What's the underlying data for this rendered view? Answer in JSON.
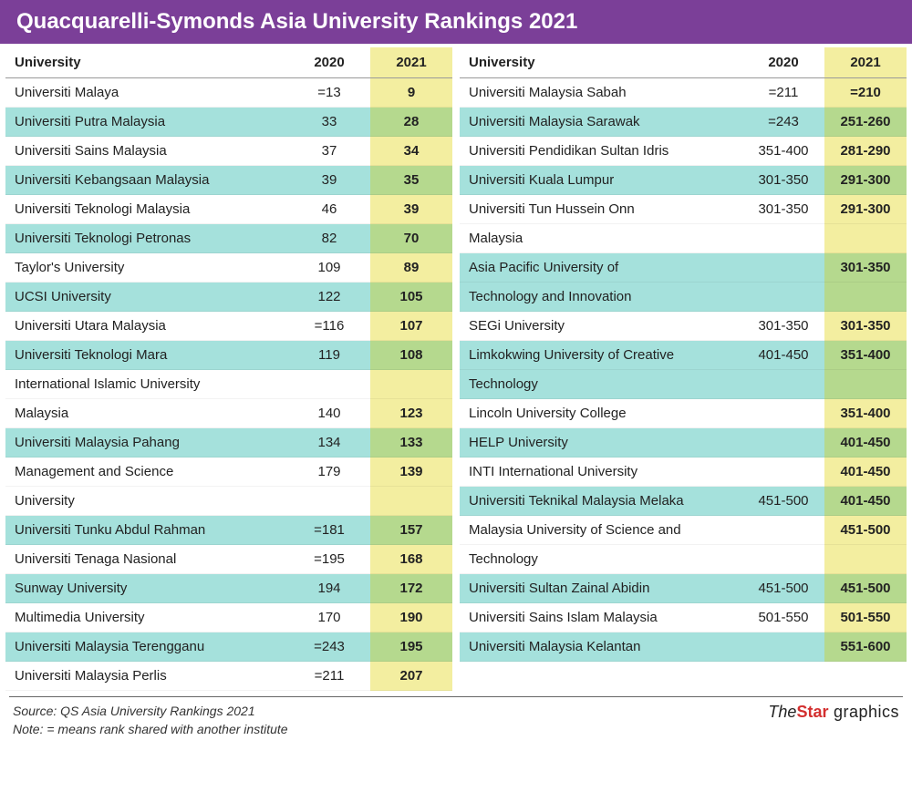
{
  "title": "Quacquarelli-Symonds Asia University Rankings 2021",
  "colors": {
    "header_bg": "#7b3f98",
    "header_text": "#ffffff",
    "stripe_teal": "#a5e1dc",
    "stripe_white": "#ffffff",
    "col2021_yellow": "#f3eea0",
    "col2021_green": "#b5d98e",
    "text": "#222222"
  },
  "columns": {
    "university": "University",
    "y2020": "2020",
    "y2021": "2021"
  },
  "left": [
    {
      "u": "Universiti Malaya",
      "a": "=13",
      "b": "9",
      "hl": "y"
    },
    {
      "u": "Universiti Putra Malaysia",
      "a": "33",
      "b": "28",
      "hl": "g"
    },
    {
      "u": "Universiti Sains Malaysia",
      "a": "37",
      "b": "34",
      "hl": "y"
    },
    {
      "u": "Universiti Kebangsaan Malaysia",
      "a": "39",
      "b": "35",
      "hl": "g"
    },
    {
      "u": "Universiti Teknologi Malaysia",
      "a": "46",
      "b": "39",
      "hl": "y"
    },
    {
      "u": "Universiti Teknologi Petronas",
      "a": "82",
      "b": "70",
      "hl": "g"
    },
    {
      "u": "Taylor's University",
      "a": "109",
      "b": "89",
      "hl": "y"
    },
    {
      "u": "UCSI University",
      "a": "122",
      "b": "105",
      "hl": "g"
    },
    {
      "u": "Universiti Utara Malaysia",
      "a": "=116",
      "b": "107",
      "hl": "y"
    },
    {
      "u": "Universiti Teknologi Mara",
      "a": "119",
      "b": "108",
      "hl": "g"
    },
    {
      "u": "International Islamic University",
      "a": "",
      "b": "",
      "hl": "y",
      "cont": true
    },
    {
      "u": "Malaysia",
      "a": "140",
      "b": "123",
      "hl": "y"
    },
    {
      "u": "Universiti Malaysia Pahang",
      "a": "134",
      "b": "133",
      "hl": "g"
    },
    {
      "u": "Management and Science",
      "a": "179",
      "b": "139",
      "hl": "y",
      "cont": true
    },
    {
      "u": "University",
      "a": "",
      "b": "",
      "hl": "y"
    },
    {
      "u": "Universiti Tunku Abdul Rahman",
      "a": "=181",
      "b": "157",
      "hl": "g"
    },
    {
      "u": "Universiti Tenaga Nasional",
      "a": "=195",
      "b": "168",
      "hl": "y"
    },
    {
      "u": "Sunway University",
      "a": "194",
      "b": "172",
      "hl": "g"
    },
    {
      "u": "Multimedia University",
      "a": "170",
      "b": "190",
      "hl": "y"
    },
    {
      "u": "Universiti Malaysia Terengganu",
      "a": "=243",
      "b": "195",
      "hl": "g"
    },
    {
      "u": "Universiti Malaysia Perlis",
      "a": "=211",
      "b": "207",
      "hl": "y"
    }
  ],
  "right": [
    {
      "u": "Universiti Malaysia Sabah",
      "a": "=211",
      "b": "=210",
      "hl": "y"
    },
    {
      "u": "Universiti Malaysia Sarawak",
      "a": "=243",
      "b": "251-260",
      "hl": "g"
    },
    {
      "u": "Universiti Pendidikan Sultan Idris",
      "a": "351-400",
      "b": "281-290",
      "hl": "y"
    },
    {
      "u": "Universiti Kuala Lumpur",
      "a": "301-350",
      "b": "291-300",
      "hl": "g"
    },
    {
      "u": "Universiti Tun Hussein Onn",
      "a": "301-350",
      "b": "291-300",
      "hl": "y",
      "cont": true
    },
    {
      "u": "Malaysia",
      "a": "",
      "b": "",
      "hl": "y"
    },
    {
      "u": "Asia Pacific University of",
      "a": "",
      "b": "301-350",
      "hl": "g",
      "cont": true
    },
    {
      "u": "Technology and Innovation",
      "a": "",
      "b": "",
      "hl": "g"
    },
    {
      "u": "SEGi University",
      "a": "301-350",
      "b": "301-350",
      "hl": "y"
    },
    {
      "u": "Limkokwing University of Creative",
      "a": "401-450",
      "b": "351-400",
      "hl": "g",
      "cont": true
    },
    {
      "u": "Technology",
      "a": "",
      "b": "",
      "hl": "g"
    },
    {
      "u": "Lincoln University College",
      "a": "",
      "b": "351-400",
      "hl": "y"
    },
    {
      "u": "HELP University",
      "a": "",
      "b": "401-450",
      "hl": "g"
    },
    {
      "u": "INTI International University",
      "a": "",
      "b": "401-450",
      "hl": "y"
    },
    {
      "u": "Universiti Teknikal Malaysia Melaka",
      "a": "451-500",
      "b": "401-450",
      "hl": "g"
    },
    {
      "u": "Malaysia University of Science and",
      "a": "",
      "b": "451-500",
      "hl": "y",
      "cont": true
    },
    {
      "u": "Technology",
      "a": "",
      "b": "",
      "hl": "y"
    },
    {
      "u": "Universiti Sultan Zainal Abidin",
      "a": "451-500",
      "b": "451-500",
      "hl": "g"
    },
    {
      "u": "Universiti Sains Islam Malaysia",
      "a": "501-550",
      "b": "501-550",
      "hl": "y"
    },
    {
      "u": "Universiti Malaysia Kelantan",
      "a": "",
      "b": "551-600",
      "hl": "g"
    }
  ],
  "footer": {
    "source": "Source: QS Asia University Rankings 2021",
    "note": "Note: = means rank shared with another institute",
    "logo_the": "The",
    "logo_star": "Star",
    "logo_gfx": " graphics"
  }
}
